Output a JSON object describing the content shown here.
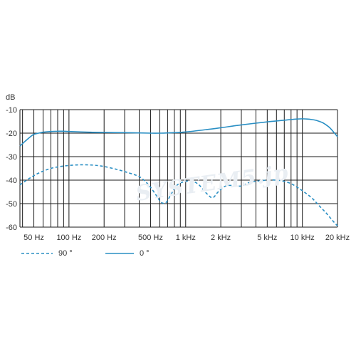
{
  "chart_data": {
    "type": "line",
    "unit_label": "dB",
    "x_scale": "log",
    "xlim": [
      38,
      20000
    ],
    "ylim": [
      -60,
      -10
    ],
    "yticks": [
      -10,
      -20,
      -30,
      -40,
      -50,
      -60
    ],
    "ytick_labels": [
      "-10",
      "-20",
      "-30",
      "-40",
      "-50",
      "-60"
    ],
    "xticks": [
      50,
      100,
      200,
      500,
      1000,
      2000,
      5000,
      10000,
      20000
    ],
    "xtick_labels": [
      "50 Hz",
      "100 Hz",
      "200 Hz",
      "500 Hz",
      "1 kHz",
      "2 kHz",
      "5 kHz",
      "10 kHz",
      "20 kHz"
    ],
    "x_gridlines": [
      40,
      50,
      60,
      70,
      80,
      90,
      100,
      200,
      300,
      400,
      500,
      600,
      700,
      800,
      900,
      1000,
      2000,
      3000,
      4000,
      5000,
      6000,
      7000,
      8000,
      9000,
      10000,
      20000
    ],
    "grid": true,
    "legend_position": "bottom-left",
    "series": [
      {
        "name": "90 °",
        "style": "dashed",
        "color": "#2a8fc4",
        "x": [
          38,
          45,
          55,
          70,
          90,
          120,
          160,
          200,
          260,
          330,
          400,
          450,
          500,
          560,
          620,
          680,
          750,
          850,
          1000,
          1150,
          1300,
          1500,
          1700,
          1900,
          2200,
          2600,
          3000,
          3500,
          4000,
          5000,
          6000,
          7000,
          8000,
          9000,
          10000,
          12000,
          14000,
          16000,
          18000,
          20000
        ],
        "y": [
          -42,
          -39.5,
          -37,
          -35,
          -34,
          -33.5,
          -33.6,
          -34.2,
          -35.5,
          -37,
          -38.5,
          -40.5,
          -43,
          -46.5,
          -49.5,
          -49.5,
          -46,
          -42,
          -40.5,
          -40.5,
          -42,
          -45.5,
          -47.5,
          -45,
          -42.5,
          -42.3,
          -42.5,
          -41,
          -40.5,
          -40,
          -40,
          -40.5,
          -41.5,
          -43,
          -44.5,
          -47.5,
          -51,
          -54,
          -57,
          -59.5
        ]
      },
      {
        "name": "0 °",
        "style": "solid",
        "color": "#2a8fc4",
        "x": [
          38,
          42,
          46,
          50,
          55,
          60,
          70,
          80,
          90,
          100,
          150,
          200,
          300,
          400,
          500,
          600,
          700,
          800,
          1000,
          1500,
          2000,
          3000,
          5000,
          7000,
          8000,
          9000,
          10000,
          11000,
          12000,
          13000,
          14000,
          15000,
          16000,
          17000,
          18000,
          19000,
          20000
        ],
        "y": [
          -25.5,
          -23.5,
          -21.8,
          -20.5,
          -20,
          -19.6,
          -19.3,
          -19.2,
          -19.2,
          -19.3,
          -19.6,
          -19.7,
          -19.8,
          -19.9,
          -20,
          -20,
          -19.9,
          -19.8,
          -19.5,
          -18.5,
          -17.7,
          -16.5,
          -15.2,
          -14.5,
          -14.2,
          -14.0,
          -13.9,
          -14.0,
          -14.2,
          -14.5,
          -15.0,
          -15.6,
          -16.5,
          -17.5,
          -18.8,
          -20.2,
          -21.5
        ]
      }
    ]
  },
  "legend": {
    "items": [
      {
        "label": "90 °",
        "color": "#2a8fc4",
        "style": "dashed"
      },
      {
        "label": "0 °",
        "color": "#2a8fc4",
        "style": "solid"
      }
    ]
  },
  "watermark": {
    "text": "SYSTEM5.jp"
  },
  "colors": {
    "grid": "#1a1a1a",
    "curve": "#2a8fc4"
  }
}
